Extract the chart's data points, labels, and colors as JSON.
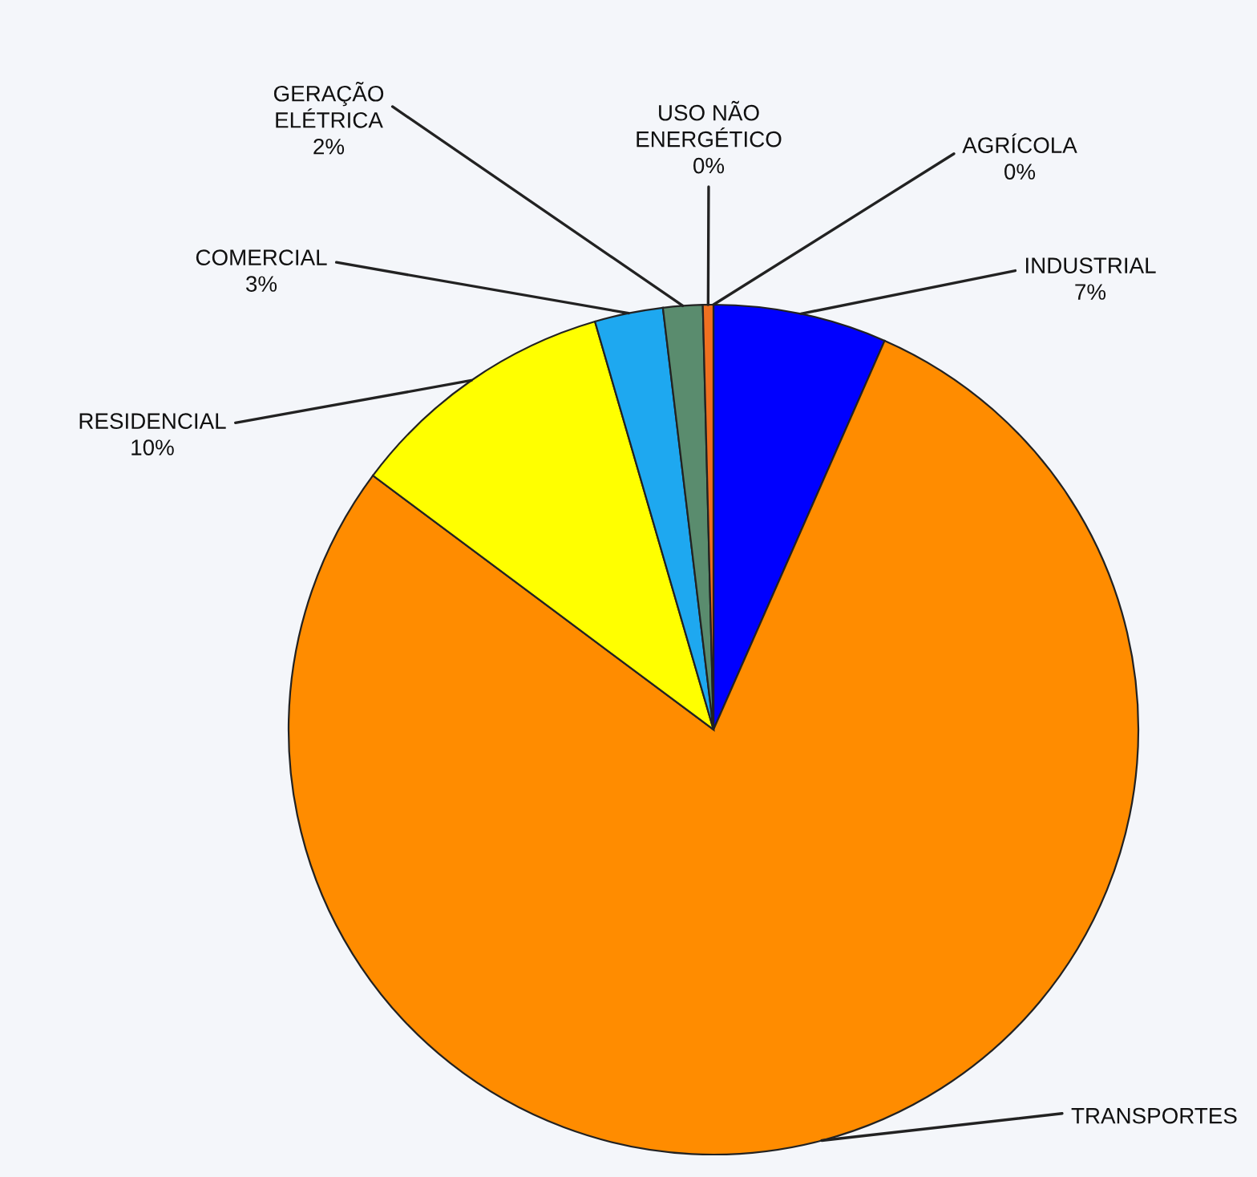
{
  "chart_data": {
    "type": "pie",
    "categories": [
      "AGRÍCOLA",
      "INDUSTRIAL",
      "TRANSPORTES",
      "RESIDENCIAL",
      "COMERCIAL",
      "GERAÇÃO\nELÉTRICA",
      "USO NÃO\nENERGÉTICO"
    ],
    "values": [
      0,
      6.6,
      78.6,
      10.3,
      2.6,
      1.5,
      0.4
    ],
    "colors": [
      "#ff3000",
      "#0000ff",
      "#ff8c00",
      "#ffff00",
      "#1ea8f0",
      "#5a8c6e",
      "#f07020"
    ],
    "value_labels": [
      "0%",
      "7%",
      null,
      "10%",
      "3%",
      "2%",
      "0%"
    ]
  }
}
